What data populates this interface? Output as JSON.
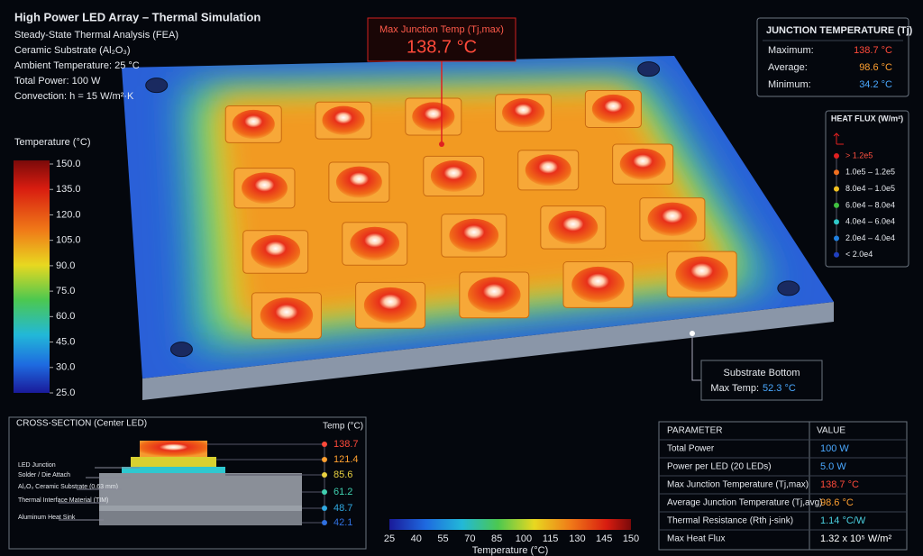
{
  "header": {
    "title": "High Power LED Array – Thermal Simulation",
    "lines": [
      "Steady-State Thermal Analysis (FEA)",
      "Ceramic Substrate (Al₂O₃)",
      "Ambient Temperature: 25 °C",
      "Total Power: 100 W",
      "Convection: h = 15 W/m²·K"
    ]
  },
  "callout": {
    "label": "Max Junction Temp (Tj,max)",
    "value": "138.7 °C"
  },
  "junction_panel": {
    "title": "JUNCTION TEMPERATURE (Tj)",
    "rows": [
      [
        "Maximum:",
        "138.7 °C"
      ],
      [
        "Average:",
        "98.6 °C"
      ],
      [
        "Minimum:",
        "34.2 °C"
      ]
    ]
  },
  "heat_flux": {
    "title": "HEAT FLUX (W/m²)",
    "items": [
      "> 1.2e5",
      "1.0e5 – 1.2e5",
      "8.0e4 – 1.0e5",
      "6.0e4 – 8.0e4",
      "4.0e4 – 6.0e4",
      "2.0e4 – 4.0e4",
      "< 2.0e4"
    ]
  },
  "temp_scale": {
    "title": "Temperature (°C)",
    "ticks": [
      "150.0",
      "135.0",
      "120.0",
      "105.0",
      "90.0",
      "75.0",
      "60.0",
      "45.0",
      "30.0",
      "25.0"
    ]
  },
  "substrate": {
    "title": "Substrate Bottom",
    "label": "Max Temp:",
    "value": "52.3 °C"
  },
  "cross_section": {
    "title": "CROSS-SECTION (Center LED)",
    "unit": "Temp (°C)",
    "layers": [
      "LED Junction",
      "Solder / Die Attach",
      "Al₂O₃ Ceramic Substrate (0.63 mm)",
      "Thermal Interface Material (TIM)",
      "Aluminum Heat Sink"
    ],
    "temps": [
      "138.7",
      "121.4",
      "85.6",
      "61.2",
      "48.7",
      "42.1"
    ]
  },
  "bottom_scale": {
    "title": "Temperature (°C)",
    "ticks": [
      "25",
      "40",
      "55",
      "70",
      "85",
      "100",
      "115",
      "130",
      "145",
      "150"
    ]
  },
  "table": {
    "header": [
      "PARAMETER",
      "VALUE"
    ],
    "rows": [
      [
        "Total Power",
        "100 W"
      ],
      [
        "Power per LED (20 LEDs)",
        "5.0 W"
      ],
      [
        "Max Junction Temperature (Tj,max)",
        "138.7 °C"
      ],
      [
        "Average Junction Temperature (Tj,avg)",
        "98.6 °C"
      ],
      [
        "Thermal Resistance (Rth j-sink)",
        "1.14 °C/W"
      ],
      [
        "Max Heat Flux",
        "1.32 x 10⁵ W/m²"
      ]
    ]
  }
}
